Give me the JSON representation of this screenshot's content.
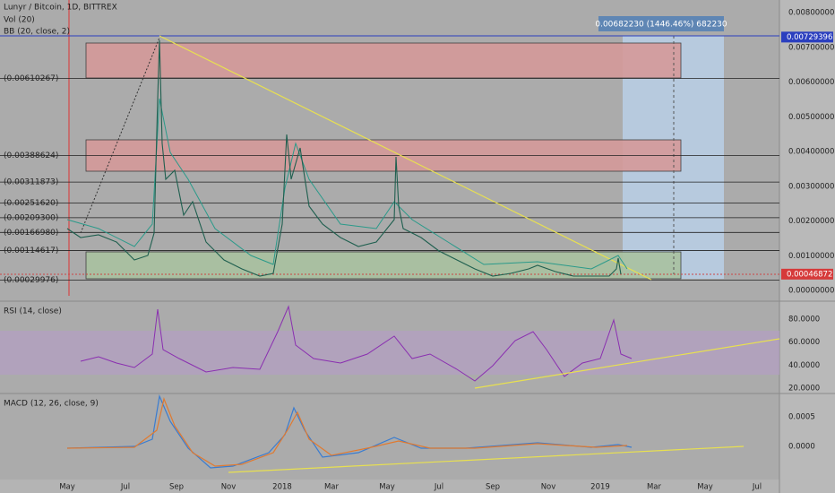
{
  "header": {
    "symbol": "Lunyr / Bitcoin, 1D, BITTREX",
    "indicators": [
      "Vol (20)",
      "BB (20, close, 2)"
    ]
  },
  "measure": "0.00682230 (1446.46%) 682230",
  "price_axis": [
    "0.00800000",
    "0.00700000",
    "0.00600000",
    "0.00500000",
    "0.00400000",
    "0.00300000",
    "0.00200000",
    "0.00100000",
    "0.00000000"
  ],
  "price_tags": [
    "0.00729396",
    "0.00046872"
  ],
  "fib_levels": [
    "(0.00610267)",
    "(0.00388624)",
    "(0.00311873)",
    "(0.00251620)",
    "(0.00209300)",
    "(0.00166980)",
    "(0.00114617)",
    "(0.00029976)"
  ],
  "rsi": {
    "title": "RSI (14, close)",
    "axis": [
      "80.0000",
      "60.0000",
      "40.0000",
      "20.0000"
    ]
  },
  "macd": {
    "title": "MACD (12, 26, close, 9)",
    "axis": [
      "0.0005",
      "0.0000"
    ]
  },
  "time_axis": [
    "May",
    "Jul",
    "Sep",
    "Nov",
    "2018",
    "Mar",
    "May",
    "Jul",
    "Sep",
    "Nov",
    "2019",
    "Mar",
    "May",
    "Jul"
  ]
}
